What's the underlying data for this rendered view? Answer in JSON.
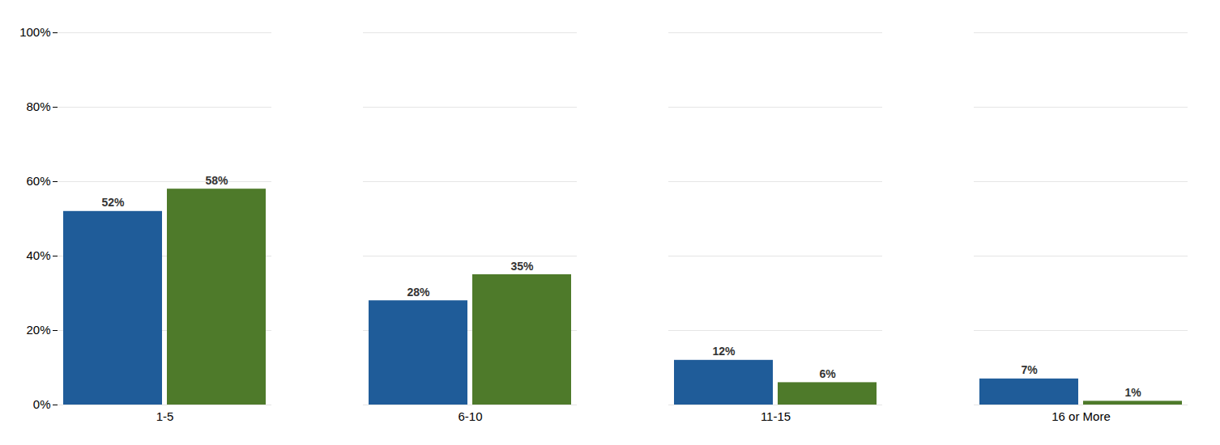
{
  "chart_data": {
    "type": "bar",
    "categories": [
      "1-5",
      "6-10",
      "11-15",
      "16 or More"
    ],
    "series": [
      {
        "color": "#1F5C99",
        "values": [
          52,
          28,
          12,
          7
        ],
        "value_labels": [
          "52%",
          "28%",
          "12%",
          "7%"
        ]
      },
      {
        "color": "#4E7A2A",
        "values": [
          58,
          35,
          6,
          1
        ],
        "value_labels": [
          "58%",
          "35%",
          "6%",
          "1%"
        ]
      }
    ],
    "ylim": [
      0,
      100
    ],
    "yticks": [
      {
        "value": 0,
        "label": "0%"
      },
      {
        "value": 20,
        "label": "20%"
      },
      {
        "value": 40,
        "label": "40%"
      },
      {
        "value": 60,
        "label": "60%"
      },
      {
        "value": 80,
        "label": "80%"
      },
      {
        "value": 100,
        "label": "100%"
      }
    ],
    "grid": true,
    "data_labels": true
  }
}
